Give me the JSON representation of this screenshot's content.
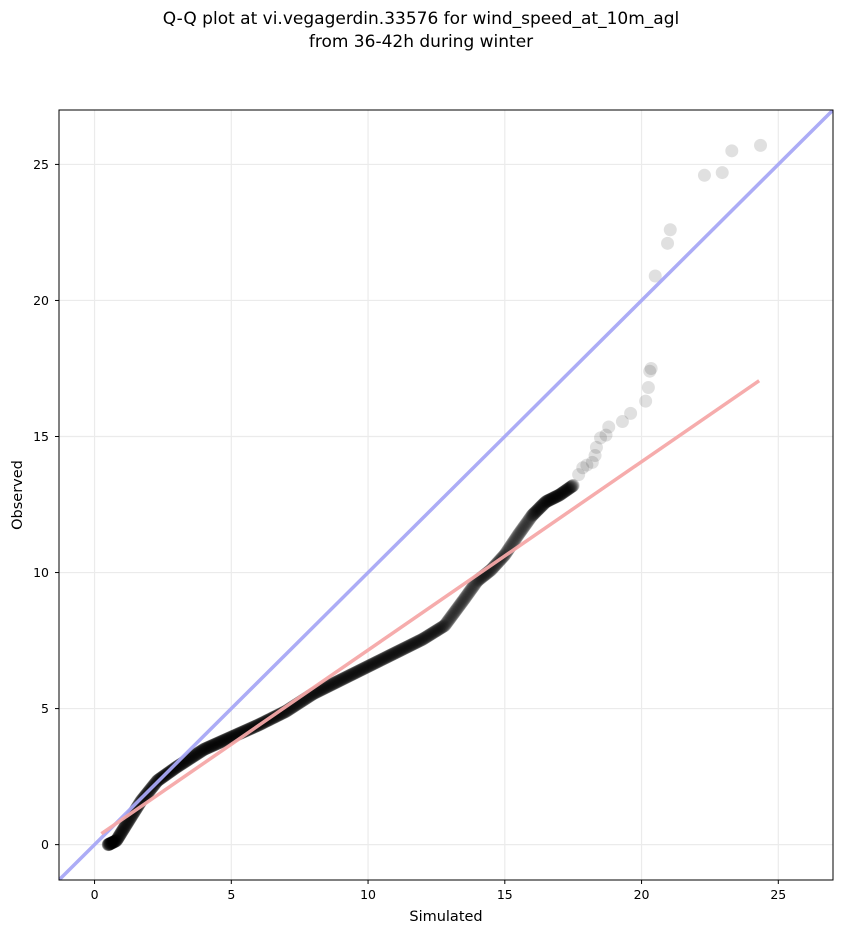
{
  "chart_data": {
    "type": "scatter",
    "title_lines": [
      "Q-Q plot at vi.vegagerdin.33576 for wind_speed_at_10m_agl",
      "from 36-42h during winter"
    ],
    "xlabel": "Simulated",
    "ylabel": "Observed",
    "xlim": [
      -1.3,
      27.0
    ],
    "ylim": [
      -1.3,
      27.0
    ],
    "xticks": [
      0,
      5,
      10,
      15,
      20,
      25
    ],
    "yticks": [
      0,
      5,
      10,
      15,
      20,
      25
    ],
    "grid": true,
    "colors": {
      "identity_line": "#a8a8f5",
      "fit_line": "#f5a8a8",
      "points": "#000000",
      "grid": "#ebebeb",
      "axes": "#000000"
    },
    "identity_line": {
      "x": [
        -1.3,
        27.0
      ],
      "y": [
        -1.3,
        27.0
      ]
    },
    "fit_line": {
      "x": [
        0.25,
        24.3
      ],
      "y": [
        0.4,
        17.05
      ]
    },
    "curve_knots": {
      "x": [
        0.5,
        0.8,
        1.2,
        1.7,
        2.3,
        3.0,
        4.0,
        5.0,
        6.0,
        7.0,
        8.0,
        9.0,
        10.0,
        11.0,
        12.0,
        12.8,
        13.5,
        14.0,
        14.5,
        15.0,
        15.5,
        16.0,
        16.5,
        17.0,
        17.5
      ],
      "y": [
        0.0,
        0.15,
        0.8,
        1.6,
        2.35,
        2.85,
        3.5,
        3.95,
        4.4,
        4.9,
        5.55,
        6.05,
        6.55,
        7.05,
        7.55,
        8.05,
        9.0,
        9.7,
        10.1,
        10.65,
        11.4,
        12.1,
        12.6,
        12.85,
        13.2
      ]
    },
    "curve_point_count": 900,
    "tail_points": {
      "x": [
        17.7,
        17.85,
        18.0,
        18.2,
        18.3,
        18.35,
        18.5,
        18.7,
        18.8,
        19.3,
        19.6,
        20.15,
        20.25,
        20.3,
        20.35,
        20.5,
        20.95,
        21.05,
        22.3,
        22.95,
        23.3,
        24.35
      ],
      "y": [
        13.6,
        13.85,
        13.95,
        14.05,
        14.3,
        14.6,
        14.95,
        15.05,
        15.35,
        15.55,
        15.85,
        16.3,
        16.8,
        17.4,
        17.5,
        20.9,
        22.1,
        22.6,
        24.6,
        24.7,
        25.5,
        25.7
      ]
    }
  }
}
